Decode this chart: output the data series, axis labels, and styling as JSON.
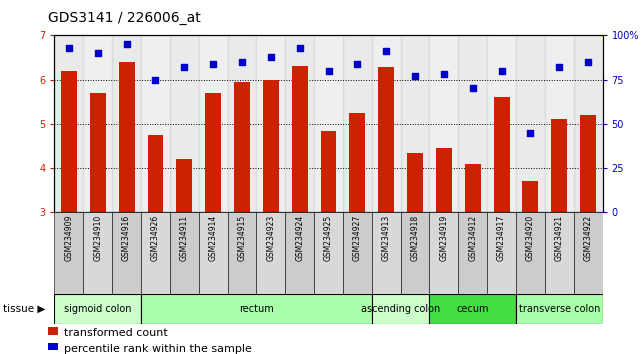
{
  "title": "GDS3141 / 226006_at",
  "samples": [
    "GSM234909",
    "GSM234910",
    "GSM234916",
    "GSM234926",
    "GSM234911",
    "GSM234914",
    "GSM234915",
    "GSM234923",
    "GSM234924",
    "GSM234925",
    "GSM234927",
    "GSM234913",
    "GSM234918",
    "GSM234919",
    "GSM234912",
    "GSM234917",
    "GSM234920",
    "GSM234921",
    "GSM234922"
  ],
  "bar_values": [
    6.2,
    5.7,
    6.4,
    4.75,
    4.2,
    5.7,
    5.95,
    6.0,
    6.3,
    4.85,
    5.25,
    6.28,
    4.35,
    4.45,
    4.1,
    5.6,
    3.7,
    5.1,
    5.2
  ],
  "dot_pct": [
    93,
    90,
    95,
    75,
    82,
    84,
    85,
    88,
    93,
    80,
    84,
    91,
    77,
    78,
    70,
    80,
    45,
    82,
    85
  ],
  "ylim_left": [
    3,
    7
  ],
  "ylim_right": [
    0,
    100
  ],
  "yticks_left": [
    3,
    4,
    5,
    6,
    7
  ],
  "yticks_right": [
    0,
    25,
    50,
    75,
    100
  ],
  "ytick_right_labels": [
    "0",
    "25",
    "50",
    "75",
    "100%"
  ],
  "bar_color": "#cc2200",
  "dot_color": "#0000cc",
  "tissue_groups": [
    {
      "label": "sigmoid colon",
      "start": 0,
      "end": 3,
      "color": "#ccffcc"
    },
    {
      "label": "rectum",
      "start": 3,
      "end": 11,
      "color": "#aaffaa"
    },
    {
      "label": "ascending colon",
      "start": 11,
      "end": 13,
      "color": "#ccffcc"
    },
    {
      "label": "cecum",
      "start": 13,
      "end": 16,
      "color": "#44dd44"
    },
    {
      "label": "transverse colon",
      "start": 16,
      "end": 19,
      "color": "#aaffaa"
    }
  ],
  "legend_bar_label": "transformed count",
  "legend_dot_label": "percentile rank within the sample",
  "bar_width": 0.55,
  "col_colors": [
    "#cccccc",
    "#d8d8d8"
  ],
  "grid_yticks": [
    4,
    5,
    6
  ],
  "title_fontsize": 10,
  "tick_fontsize": 7,
  "sample_fontsize": 5.5,
  "tissue_fontsize": 7,
  "legend_fontsize": 8
}
